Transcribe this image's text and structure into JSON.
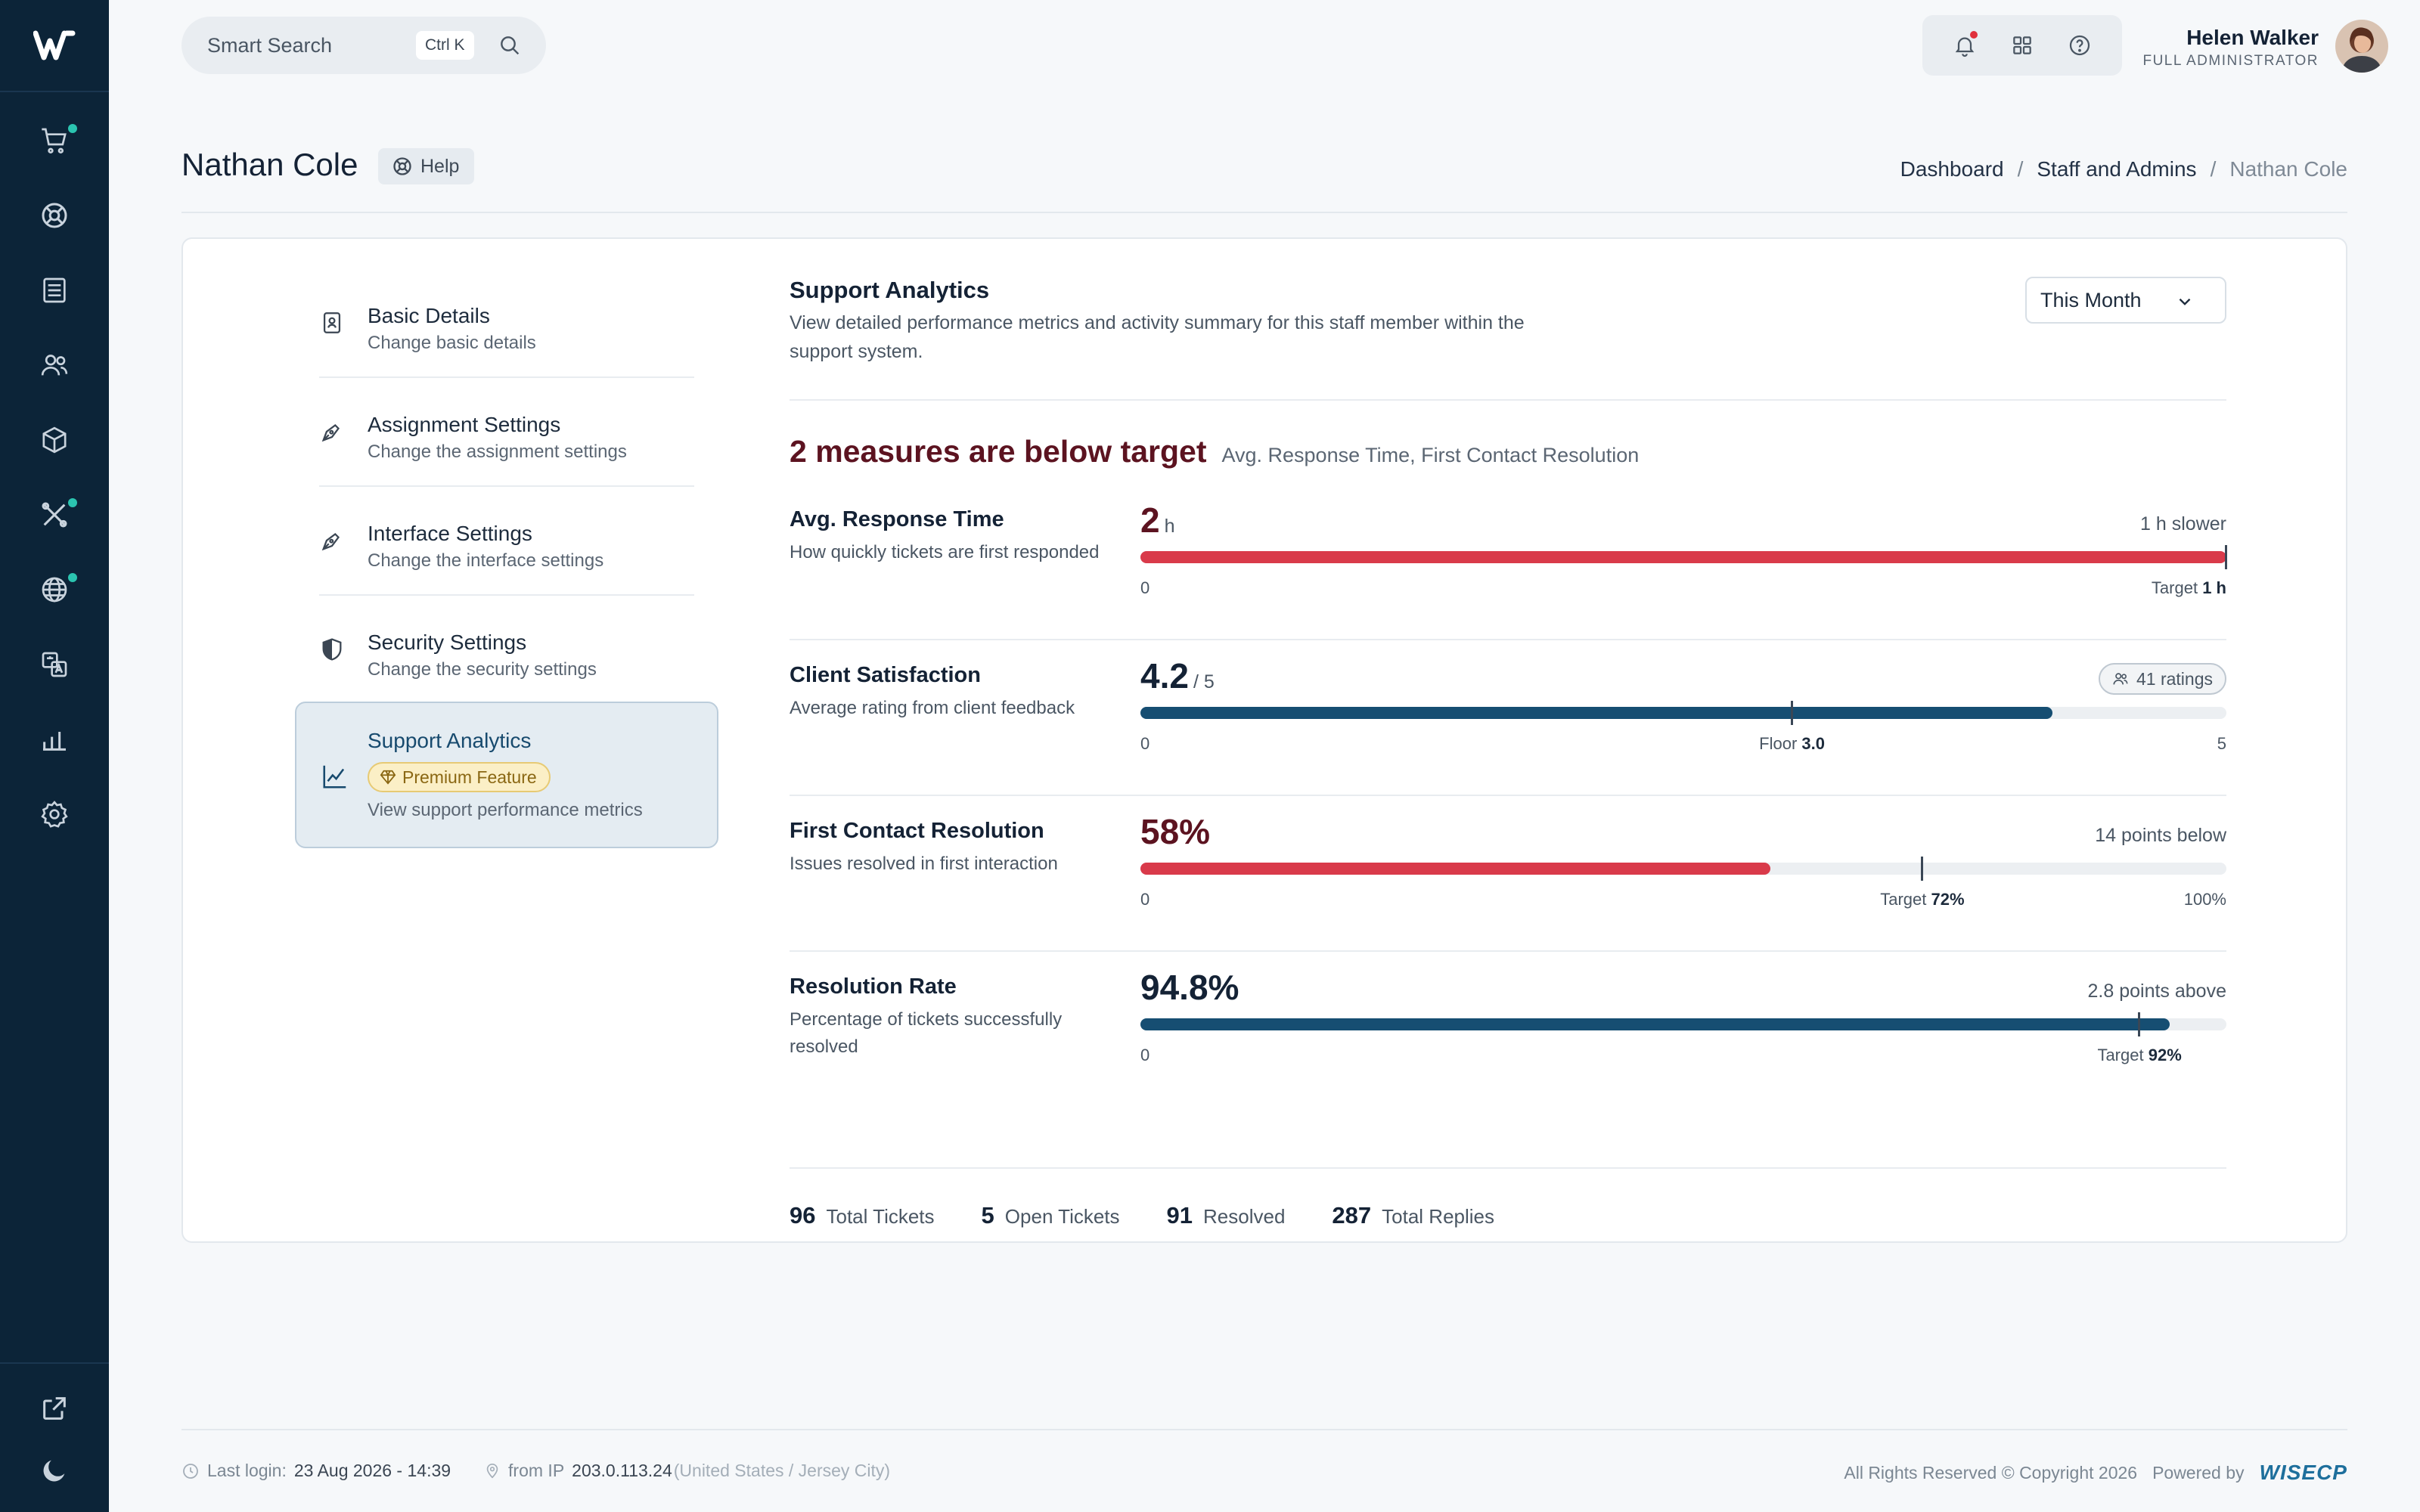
{
  "app": {
    "brand_mark": "W"
  },
  "search": {
    "placeholder": "Smart Search",
    "shortcut": "Ctrl K"
  },
  "user": {
    "name": "Helen Walker",
    "role": "FULL ADMINISTRATOR"
  },
  "page": {
    "title": "Nathan Cole",
    "help_label": "Help"
  },
  "breadcrumb": {
    "items": [
      "Dashboard",
      "Staff and Admins",
      "Nathan Cole"
    ]
  },
  "menu": {
    "items": [
      {
        "title": "Basic Details",
        "subtitle": "Change basic details",
        "icon": "id-card-icon"
      },
      {
        "title": "Assignment Settings",
        "subtitle": "Change the assignment settings",
        "icon": "pen-icon"
      },
      {
        "title": "Interface Settings",
        "subtitle": "Change the interface settings",
        "icon": "pen-icon"
      },
      {
        "title": "Security Settings",
        "subtitle": "Change the security settings",
        "icon": "shield-icon"
      },
      {
        "title": "Support Analytics",
        "badge": "Premium Feature",
        "subtitle": "View support performance metrics",
        "icon": "chart-line-icon",
        "active": true
      }
    ]
  },
  "analytics": {
    "title": "Support Analytics",
    "description": "View detailed performance metrics and activity summary for this staff member within the support system.",
    "period": "This Month",
    "alert_title": "2 measures are below target",
    "alert_measures": "Avg. Response Time, First Contact Resolution",
    "metrics": [
      {
        "name": "Avg. Response Time",
        "desc": "How quickly tickets are first responded",
        "value": "2",
        "unit": "h",
        "right": "1 h slower",
        "scale_min": "0",
        "marker_label": "Target",
        "marker_value": "1 h",
        "fill_fraction": 1.0,
        "marker_fraction": 1.0,
        "status": "below"
      },
      {
        "name": "Client Satisfaction",
        "desc": "Average rating from client feedback",
        "value": "4.2",
        "unit": "/ 5",
        "ratings": "41 ratings",
        "scale_min": "0",
        "marker_label": "Floor",
        "marker_value": "3.0",
        "scale_max": "5",
        "fill_fraction": 0.84,
        "marker_fraction": 0.6,
        "status": "ok"
      },
      {
        "name": "First Contact Resolution",
        "desc": "Issues resolved in first interaction",
        "value": "58%",
        "unit": "",
        "right": "14 points below",
        "scale_min": "0",
        "marker_label": "Target",
        "marker_value": "72%",
        "scale_max": "100%",
        "fill_fraction": 0.58,
        "marker_fraction": 0.72,
        "status": "below"
      },
      {
        "name": "Resolution Rate",
        "desc": "Percentage of tickets successfully resolved",
        "value": "94.8%",
        "unit": "",
        "right": "2.8 points above",
        "scale_min": "0",
        "marker_label": "Target",
        "marker_value": "92%",
        "fill_fraction": 0.948,
        "marker_fraction": 0.92,
        "status": "ok"
      }
    ],
    "stats": [
      {
        "n": "96",
        "label": "Total Tickets"
      },
      {
        "n": "5",
        "label": "Open Tickets"
      },
      {
        "n": "91",
        "label": "Resolved"
      },
      {
        "n": "287",
        "label": "Total Replies"
      }
    ]
  },
  "footer": {
    "last_login_label": "Last login:",
    "last_login": "23 Aug 2026 - 14:39",
    "ip_label": "from IP",
    "ip": "203.0.113.24",
    "location": "(United States / Jersey City)",
    "copyright": "All Rights Reserved © Copyright 2026",
    "powered_by": "Powered by",
    "powered_brand": "WISECP"
  },
  "colors": {
    "below": "#d93a4a",
    "ok": "#164e72",
    "below_text": "#5c1320",
    "ok_text": "#142235"
  }
}
